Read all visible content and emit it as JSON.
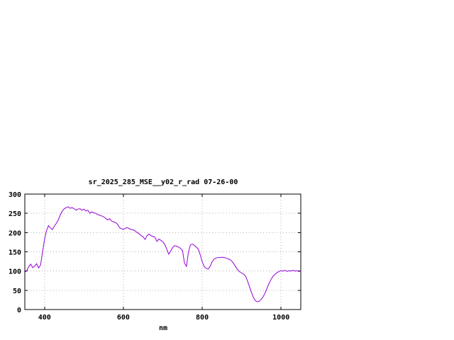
{
  "page": {
    "background": "#ffffff"
  },
  "chart_data": {
    "type": "line",
    "title": "sr_2025_285_MSE__y02_r_rad 07-26-00",
    "xlabel": "nm",
    "ylabel": "",
    "xlim": [
      350,
      1050
    ],
    "ylim": [
      0,
      300
    ],
    "xticks": [
      400,
      600,
      800,
      1000
    ],
    "yticks": [
      0,
      50,
      100,
      150,
      200,
      250,
      300
    ],
    "grid": true,
    "legend": "none",
    "line_color": "#9400d3",
    "series": [
      {
        "name": "sr_2025_285_MSE__y02_r_rad 07-26-00",
        "x": [
          350,
          355,
          360,
          365,
          370,
          375,
          380,
          385,
          390,
          395,
          400,
          405,
          410,
          415,
          420,
          425,
          430,
          435,
          440,
          445,
          450,
          455,
          460,
          465,
          470,
          475,
          480,
          485,
          490,
          495,
          500,
          505,
          510,
          515,
          520,
          525,
          530,
          535,
          540,
          545,
          550,
          555,
          560,
          565,
          570,
          575,
          580,
          585,
          590,
          595,
          600,
          605,
          610,
          615,
          620,
          625,
          630,
          635,
          640,
          645,
          650,
          655,
          660,
          665,
          670,
          675,
          680,
          685,
          690,
          695,
          700,
          705,
          710,
          715,
          720,
          725,
          730,
          735,
          740,
          745,
          750,
          755,
          760,
          765,
          770,
          775,
          780,
          785,
          790,
          795,
          800,
          805,
          810,
          815,
          820,
          825,
          830,
          835,
          840,
          845,
          850,
          855,
          860,
          865,
          870,
          875,
          880,
          885,
          890,
          895,
          900,
          905,
          910,
          915,
          920,
          925,
          930,
          935,
          940,
          945,
          950,
          955,
          960,
          965,
          970,
          975,
          980,
          985,
          990,
          995,
          1000,
          1005,
          1010,
          1015,
          1020,
          1025,
          1030,
          1035,
          1040,
          1045,
          1050
        ],
        "y": [
          97,
          101,
          112,
          118,
          109,
          113,
          119,
          108,
          116,
          150,
          182,
          205,
          218,
          212,
          208,
          217,
          224,
          233,
          246,
          256,
          262,
          265,
          267,
          263,
          265,
          262,
          258,
          261,
          262,
          258,
          261,
          256,
          258,
          250,
          254,
          251,
          250,
          247,
          245,
          243,
          241,
          237,
          233,
          236,
          230,
          228,
          226,
          222,
          213,
          210,
          208,
          211,
          213,
          210,
          208,
          207,
          204,
          200,
          197,
          192,
          189,
          182,
          192,
          196,
          192,
          190,
          188,
          177,
          183,
          180,
          176,
          169,
          157,
          144,
          152,
          161,
          166,
          165,
          162,
          159,
          153,
          121,
          112,
          149,
          168,
          170,
          167,
          162,
          157,
          142,
          124,
          112,
          107,
          105,
          112,
          124,
          131,
          134,
          135,
          135,
          136,
          135,
          134,
          132,
          130,
          126,
          119,
          111,
          103,
          98,
          95,
          92,
          87,
          74,
          59,
          44,
          31,
          23,
          20,
          22,
          27,
          34,
          44,
          57,
          69,
          79,
          87,
          92,
          96,
          99,
          101,
          100,
          102,
          99,
          101,
          100,
          102,
          100,
          101,
          99,
          100
        ]
      }
    ]
  }
}
